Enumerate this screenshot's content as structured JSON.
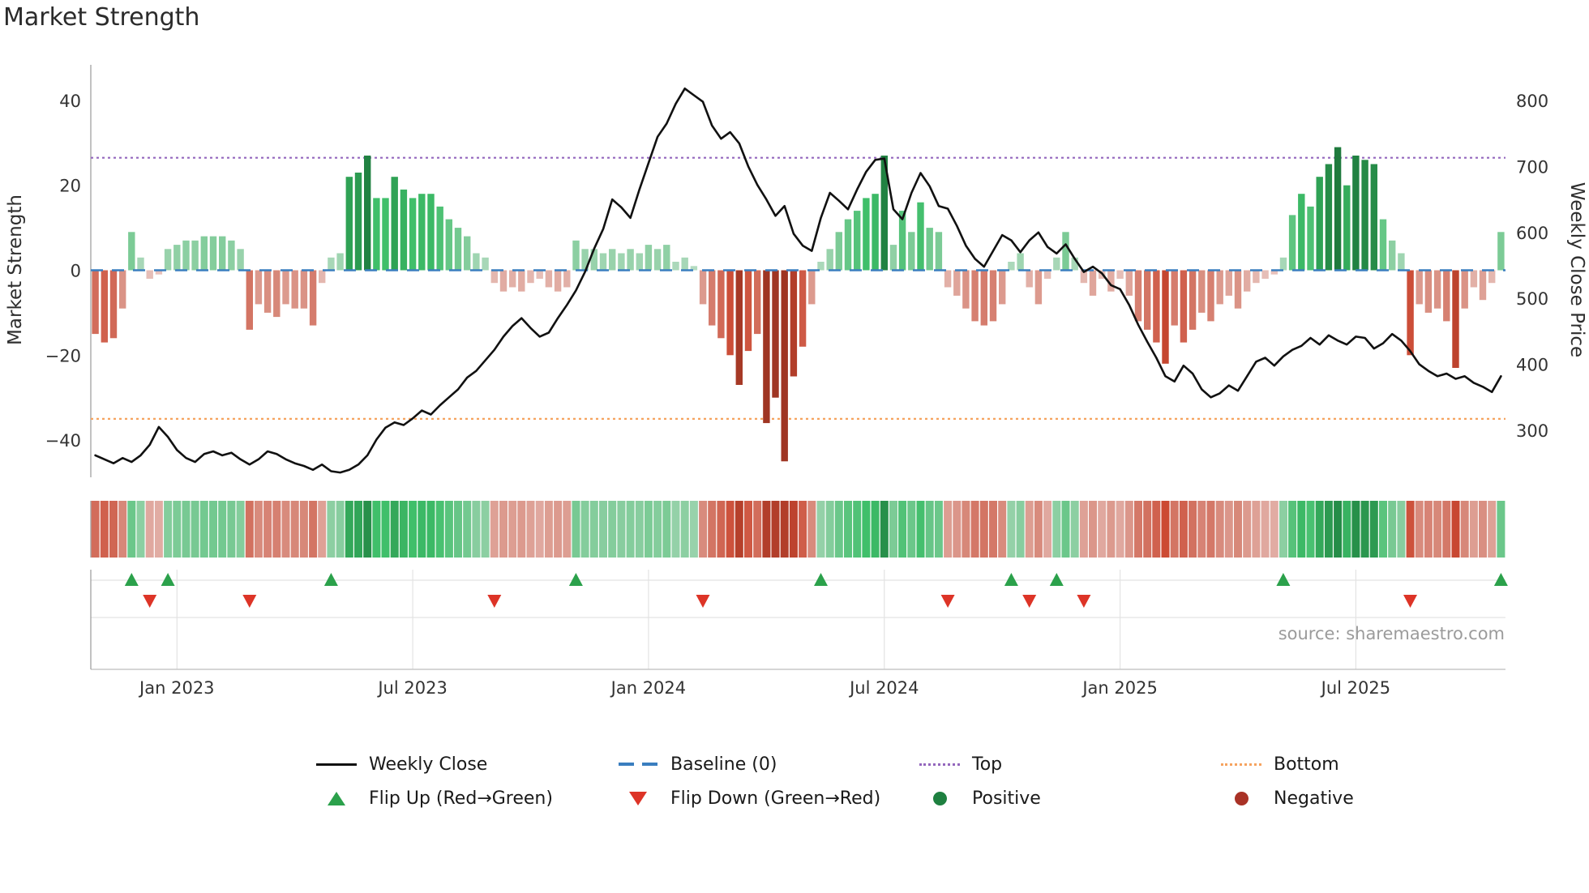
{
  "title": "Market Strength",
  "source": "source: sharemaestro.com",
  "colors": {
    "price_line": "#111111",
    "baseline": "#3a7ebf",
    "top": "#9467bd",
    "bottom": "#f6a35f",
    "flip_up": "#2ba14b",
    "flip_down": "#dd3427",
    "positive_dot": "#1e8040",
    "negative_dot": "#a93226",
    "positive_bar_dark": "#1b7a3f",
    "negative_bar_dark": "#b03a2e"
  },
  "chart_data": {
    "type": "bar+line",
    "title": "Market Strength",
    "ylabel_left": "Market Strength",
    "ylabel_right": "Weekly Close Price",
    "x_unit": "weekly",
    "left_ticks": [
      40,
      20,
      0,
      -20,
      -40
    ],
    "right_ticks": [
      800,
      700,
      600,
      500,
      400,
      300
    ],
    "left_ylim": [
      -48,
      48
    ],
    "x_ticks": [
      {
        "index": 9,
        "label": "Jan 2023"
      },
      {
        "index": 35,
        "label": "Jul 2023"
      },
      {
        "index": 61,
        "label": "Jan 2024"
      },
      {
        "index": 87,
        "label": "Jul 2024"
      },
      {
        "index": 113,
        "label": "Jan 2025"
      },
      {
        "index": 139,
        "label": "Jul 2025"
      }
    ],
    "baseline": 0,
    "top_line": 26.5,
    "bottom_line": -35,
    "strength": [
      -15,
      -17,
      -16,
      -9,
      9,
      3,
      -2,
      -1,
      5,
      6,
      7,
      7,
      8,
      8,
      8,
      7,
      5,
      -14,
      -8,
      -10,
      -11,
      -8,
      -9,
      -9,
      -13,
      -3,
      3,
      4,
      22,
      23,
      27,
      17,
      17,
      22,
      19,
      17,
      18,
      18,
      15,
      12,
      10,
      8,
      4,
      3,
      -3,
      -5,
      -4,
      -5,
      -3,
      -2,
      -4,
      -5,
      -4,
      7,
      5,
      5,
      4,
      5,
      4,
      5,
      4,
      6,
      5,
      6,
      2,
      3,
      1,
      -8,
      -13,
      -16,
      -20,
      -27,
      -19,
      -15,
      -36,
      -30,
      -45,
      -25,
      -18,
      -8,
      2,
      5,
      9,
      12,
      14,
      17,
      18,
      27,
      6,
      14,
      9,
      16,
      10,
      9,
      -4,
      -6,
      -9,
      -12,
      -13,
      -12,
      -8,
      2,
      4,
      -4,
      -8,
      -2,
      3,
      9,
      3,
      -3,
      -6,
      -2,
      -5,
      -2,
      -6,
      -12,
      -14,
      -17,
      -22,
      -13,
      -17,
      -14,
      -10,
      -12,
      -8,
      -6,
      -9,
      -5,
      -3,
      -2,
      -1,
      3,
      13,
      18,
      15,
      22,
      25,
      29,
      20,
      27,
      26,
      25,
      12,
      7,
      4,
      -20,
      -8,
      -10,
      -9,
      -12,
      -23,
      -9,
      -4,
      -7,
      -3,
      9
    ],
    "weekly_close": [
      262,
      256,
      250,
      258,
      252,
      262,
      278,
      305,
      290,
      270,
      258,
      252,
      264,
      268,
      262,
      266,
      256,
      248,
      256,
      268,
      264,
      256,
      250,
      246,
      240,
      248,
      238,
      236,
      240,
      248,
      262,
      286,
      304,
      312,
      308,
      318,
      330,
      324,
      338,
      350,
      362,
      380,
      390,
      406,
      422,
      442,
      458,
      470,
      455,
      442,
      448,
      470,
      490,
      512,
      540,
      575,
      605,
      650,
      638,
      622,
      665,
      705,
      745,
      765,
      795,
      818,
      808,
      798,
      762,
      742,
      752,
      735,
      700,
      672,
      650,
      625,
      640,
      598,
      580,
      572,
      622,
      660,
      648,
      635,
      665,
      692,
      710,
      712,
      635,
      620,
      660,
      690,
      670,
      640,
      636,
      610,
      580,
      560,
      548,
      572,
      596,
      588,
      570,
      588,
      600,
      578,
      568,
      582,
      560,
      540,
      548,
      538,
      520,
      514,
      490,
      460,
      434,
      410,
      382,
      374,
      398,
      386,
      362,
      350,
      356,
      368,
      360,
      382,
      404,
      410,
      398,
      412,
      422,
      428,
      440,
      430,
      444,
      436,
      430,
      442,
      440,
      424,
      432,
      446,
      436,
      420,
      400,
      390,
      382,
      386,
      378,
      382,
      372,
      366,
      358,
      382
    ],
    "flip_up_indices": [
      4,
      8,
      26,
      53,
      80,
      101,
      106,
      131,
      155
    ],
    "flip_down_indices": [
      6,
      17,
      44,
      67,
      94,
      103,
      109,
      145
    ],
    "heatmap_source": "strength"
  },
  "legend": {
    "rows": [
      [
        {
          "key": "weekly-close",
          "label": "Weekly Close",
          "swatch": "line"
        },
        {
          "key": "baseline",
          "label": "Baseline (0)",
          "swatch": "dash"
        },
        {
          "key": "top",
          "label": "Top",
          "swatch": "dot-purple"
        },
        {
          "key": "bottom",
          "label": "Bottom",
          "swatch": "dot-orange"
        }
      ],
      [
        {
          "key": "flip-up",
          "label": "Flip Up (Red→Green)",
          "swatch": "tri-up"
        },
        {
          "key": "flip-down",
          "label": "Flip Down (Green→Red)",
          "swatch": "tri-down"
        },
        {
          "key": "positive",
          "label": "Positive",
          "swatch": "dot-green"
        },
        {
          "key": "negative",
          "label": "Negative",
          "swatch": "dot-red"
        }
      ]
    ]
  }
}
